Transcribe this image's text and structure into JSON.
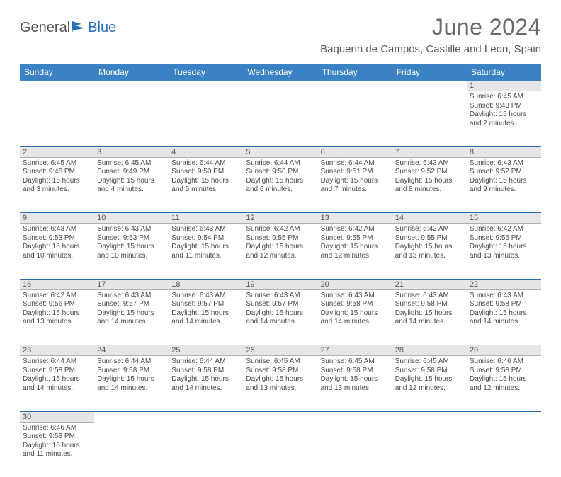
{
  "logo": {
    "part1": "General",
    "part2": "Blue"
  },
  "header": {
    "title": "June 2024",
    "location": "Baquerin de Campos, Castille and Leon, Spain"
  },
  "accent_color": "#3a82c4",
  "rule_color": "#2a6fb5",
  "dayheader_bg": "#e6e6e6",
  "daynames": [
    "Sunday",
    "Monday",
    "Tuesday",
    "Wednesday",
    "Thursday",
    "Friday",
    "Saturday"
  ],
  "weeks": [
    [
      null,
      null,
      null,
      null,
      null,
      null,
      {
        "n": "1",
        "sr": "6:45 AM",
        "ss": "9:48 PM",
        "d": "15 hours and 2 minutes."
      }
    ],
    [
      {
        "n": "2",
        "sr": "6:45 AM",
        "ss": "9:48 PM",
        "d": "15 hours and 3 minutes."
      },
      {
        "n": "3",
        "sr": "6:45 AM",
        "ss": "9:49 PM",
        "d": "15 hours and 4 minutes."
      },
      {
        "n": "4",
        "sr": "6:44 AM",
        "ss": "9:50 PM",
        "d": "15 hours and 5 minutes."
      },
      {
        "n": "5",
        "sr": "6:44 AM",
        "ss": "9:50 PM",
        "d": "15 hours and 6 minutes."
      },
      {
        "n": "6",
        "sr": "6:44 AM",
        "ss": "9:51 PM",
        "d": "15 hours and 7 minutes."
      },
      {
        "n": "7",
        "sr": "6:43 AM",
        "ss": "9:52 PM",
        "d": "15 hours and 8 minutes."
      },
      {
        "n": "8",
        "sr": "6:43 AM",
        "ss": "9:52 PM",
        "d": "15 hours and 9 minutes."
      }
    ],
    [
      {
        "n": "9",
        "sr": "6:43 AM",
        "ss": "9:53 PM",
        "d": "15 hours and 10 minutes."
      },
      {
        "n": "10",
        "sr": "6:43 AM",
        "ss": "9:53 PM",
        "d": "15 hours and 10 minutes."
      },
      {
        "n": "11",
        "sr": "6:43 AM",
        "ss": "9:54 PM",
        "d": "15 hours and 11 minutes."
      },
      {
        "n": "12",
        "sr": "6:42 AM",
        "ss": "9:55 PM",
        "d": "15 hours and 12 minutes."
      },
      {
        "n": "13",
        "sr": "6:42 AM",
        "ss": "9:55 PM",
        "d": "15 hours and 12 minutes."
      },
      {
        "n": "14",
        "sr": "6:42 AM",
        "ss": "9:55 PM",
        "d": "15 hours and 13 minutes."
      },
      {
        "n": "15",
        "sr": "6:42 AM",
        "ss": "9:56 PM",
        "d": "15 hours and 13 minutes."
      }
    ],
    [
      {
        "n": "16",
        "sr": "6:42 AM",
        "ss": "9:56 PM",
        "d": "15 hours and 13 minutes."
      },
      {
        "n": "17",
        "sr": "6:43 AM",
        "ss": "9:57 PM",
        "d": "15 hours and 14 minutes."
      },
      {
        "n": "18",
        "sr": "6:43 AM",
        "ss": "9:57 PM",
        "d": "15 hours and 14 minutes."
      },
      {
        "n": "19",
        "sr": "6:43 AM",
        "ss": "9:57 PM",
        "d": "15 hours and 14 minutes."
      },
      {
        "n": "20",
        "sr": "6:43 AM",
        "ss": "9:58 PM",
        "d": "15 hours and 14 minutes."
      },
      {
        "n": "21",
        "sr": "6:43 AM",
        "ss": "9:58 PM",
        "d": "15 hours and 14 minutes."
      },
      {
        "n": "22",
        "sr": "6:43 AM",
        "ss": "9:58 PM",
        "d": "15 hours and 14 minutes."
      }
    ],
    [
      {
        "n": "23",
        "sr": "6:44 AM",
        "ss": "9:58 PM",
        "d": "15 hours and 14 minutes."
      },
      {
        "n": "24",
        "sr": "6:44 AM",
        "ss": "9:58 PM",
        "d": "15 hours and 14 minutes."
      },
      {
        "n": "25",
        "sr": "6:44 AM",
        "ss": "9:58 PM",
        "d": "15 hours and 14 minutes."
      },
      {
        "n": "26",
        "sr": "6:45 AM",
        "ss": "9:58 PM",
        "d": "15 hours and 13 minutes."
      },
      {
        "n": "27",
        "sr": "6:45 AM",
        "ss": "9:58 PM",
        "d": "15 hours and 13 minutes."
      },
      {
        "n": "28",
        "sr": "6:45 AM",
        "ss": "9:58 PM",
        "d": "15 hours and 12 minutes."
      },
      {
        "n": "29",
        "sr": "6:46 AM",
        "ss": "9:58 PM",
        "d": "15 hours and 12 minutes."
      }
    ],
    [
      {
        "n": "30",
        "sr": "6:46 AM",
        "ss": "9:58 PM",
        "d": "15 hours and 11 minutes."
      },
      null,
      null,
      null,
      null,
      null,
      null
    ]
  ],
  "labels": {
    "sunrise": "Sunrise:",
    "sunset": "Sunset:",
    "daylight": "Daylight:"
  }
}
